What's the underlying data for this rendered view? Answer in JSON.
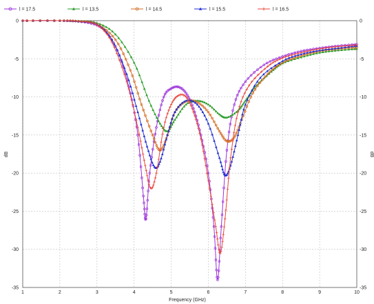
{
  "chart_data": {
    "type": "line",
    "title": "",
    "xlabel": "Frequency (GHz)",
    "ylabel": "dB",
    "ylabel_right": "dB",
    "xlim": [
      1,
      10
    ],
    "ylim": [
      -35,
      0
    ],
    "xticks": [
      "1",
      "2",
      "3",
      "4",
      "5",
      "6",
      "7",
      "8",
      "9",
      "10"
    ],
    "yticks": [
      "0",
      "-5",
      "-10",
      "-15",
      "-20",
      "-25",
      "-30",
      "-35"
    ],
    "grid": true,
    "legend_position": "top",
    "series": [
      {
        "name": "l = 17.5",
        "color": "#9b30d9",
        "marker": "circle",
        "points": [
          [
            1,
            0
          ],
          [
            2,
            0
          ],
          [
            2.5,
            -0.1
          ],
          [
            3,
            -0.6
          ],
          [
            3.3,
            -1.8
          ],
          [
            3.6,
            -4.5
          ],
          [
            3.9,
            -9.5
          ],
          [
            4.1,
            -15
          ],
          [
            4.25,
            -23
          ],
          [
            4.32,
            -26
          ],
          [
            4.42,
            -20
          ],
          [
            4.6,
            -14
          ],
          [
            4.8,
            -10
          ],
          [
            5.0,
            -8.9
          ],
          [
            5.2,
            -8.7
          ],
          [
            5.4,
            -9.5
          ],
          [
            5.6,
            -11.5
          ],
          [
            5.8,
            -15
          ],
          [
            6.0,
            -20
          ],
          [
            6.15,
            -27
          ],
          [
            6.25,
            -34
          ],
          [
            6.35,
            -27
          ],
          [
            6.5,
            -17
          ],
          [
            6.7,
            -11
          ],
          [
            7.0,
            -8
          ],
          [
            7.5,
            -5.8
          ],
          [
            8,
            -4.7
          ],
          [
            8.5,
            -4
          ],
          [
            9,
            -3.6
          ],
          [
            9.5,
            -3.3
          ],
          [
            10,
            -3.1
          ]
        ]
      },
      {
        "name": "l = 13.5",
        "color": "#2a9d2a",
        "marker": "triangle",
        "points": [
          [
            1,
            0
          ],
          [
            2,
            0
          ],
          [
            2.5,
            -0.05
          ],
          [
            3,
            -0.3
          ],
          [
            3.5,
            -1.8
          ],
          [
            4.0,
            -5.5
          ],
          [
            4.4,
            -10.5
          ],
          [
            4.7,
            -13.5
          ],
          [
            4.9,
            -14.5
          ],
          [
            5.1,
            -13
          ],
          [
            5.4,
            -11
          ],
          [
            5.7,
            -10.5
          ],
          [
            6.0,
            -11
          ],
          [
            6.3,
            -12.3
          ],
          [
            6.5,
            -12.7
          ],
          [
            6.8,
            -11.8
          ],
          [
            7.0,
            -10.5
          ],
          [
            7.3,
            -8.5
          ],
          [
            7.7,
            -6.7
          ],
          [
            8,
            -5.6
          ],
          [
            8.5,
            -4.8
          ],
          [
            9,
            -4.2
          ],
          [
            9.5,
            -3.9
          ],
          [
            10,
            -3.7
          ]
        ]
      },
      {
        "name": "l = 14.5",
        "color": "#d2691e",
        "marker": "circle",
        "points": [
          [
            1,
            0
          ],
          [
            2,
            0
          ],
          [
            2.5,
            -0.08
          ],
          [
            3,
            -0.45
          ],
          [
            3.5,
            -2.5
          ],
          [
            3.9,
            -6.5
          ],
          [
            4.2,
            -11
          ],
          [
            4.5,
            -15
          ],
          [
            4.7,
            -17
          ],
          [
            4.9,
            -15
          ],
          [
            5.1,
            -12
          ],
          [
            5.4,
            -10.6
          ],
          [
            5.7,
            -10.7
          ],
          [
            6.0,
            -12
          ],
          [
            6.3,
            -14.5
          ],
          [
            6.5,
            -15.8
          ],
          [
            6.7,
            -15.3
          ],
          [
            6.9,
            -13
          ],
          [
            7.2,
            -9.5
          ],
          [
            7.6,
            -7
          ],
          [
            8,
            -5.5
          ],
          [
            8.5,
            -4.6
          ],
          [
            9,
            -4
          ],
          [
            9.5,
            -3.7
          ],
          [
            10,
            -3.5
          ]
        ]
      },
      {
        "name": "l = 15.5",
        "color": "#1f2fd0",
        "marker": "triangle",
        "points": [
          [
            1,
            0
          ],
          [
            2,
            0
          ],
          [
            2.5,
            -0.1
          ],
          [
            3,
            -0.5
          ],
          [
            3.4,
            -2.5
          ],
          [
            3.8,
            -7
          ],
          [
            4.1,
            -12
          ],
          [
            4.35,
            -16.5
          ],
          [
            4.55,
            -19.2
          ],
          [
            4.7,
            -18.5
          ],
          [
            4.9,
            -15
          ],
          [
            5.1,
            -12
          ],
          [
            5.4,
            -10.5
          ],
          [
            5.7,
            -11
          ],
          [
            6.0,
            -13.5
          ],
          [
            6.3,
            -18
          ],
          [
            6.45,
            -20.3
          ],
          [
            6.6,
            -19
          ],
          [
            6.8,
            -15
          ],
          [
            7.0,
            -11
          ],
          [
            7.4,
            -7.5
          ],
          [
            8,
            -5.3
          ],
          [
            8.5,
            -4.4
          ],
          [
            9,
            -3.9
          ],
          [
            9.5,
            -3.6
          ],
          [
            10,
            -3.3
          ]
        ]
      },
      {
        "name": "l = 16.5",
        "color": "#e8443a",
        "marker": "plus",
        "points": [
          [
            1,
            0
          ],
          [
            2,
            0
          ],
          [
            2.5,
            -0.1
          ],
          [
            3,
            -0.55
          ],
          [
            3.4,
            -2.8
          ],
          [
            3.8,
            -8
          ],
          [
            4.1,
            -14
          ],
          [
            4.3,
            -19
          ],
          [
            4.45,
            -22
          ],
          [
            4.6,
            -20
          ],
          [
            4.8,
            -14
          ],
          [
            5.0,
            -11
          ],
          [
            5.2,
            -9.8
          ],
          [
            5.4,
            -10
          ],
          [
            5.6,
            -12
          ],
          [
            5.8,
            -15.5
          ],
          [
            6.0,
            -21
          ],
          [
            6.2,
            -27
          ],
          [
            6.32,
            -30.5
          ],
          [
            6.45,
            -26
          ],
          [
            6.6,
            -18
          ],
          [
            6.8,
            -12
          ],
          [
            7.1,
            -8.5
          ],
          [
            7.6,
            -6
          ],
          [
            8,
            -4.9
          ],
          [
            8.5,
            -4.2
          ],
          [
            9,
            -3.7
          ],
          [
            9.5,
            -3.4
          ],
          [
            10,
            -3.2
          ]
        ]
      }
    ]
  }
}
